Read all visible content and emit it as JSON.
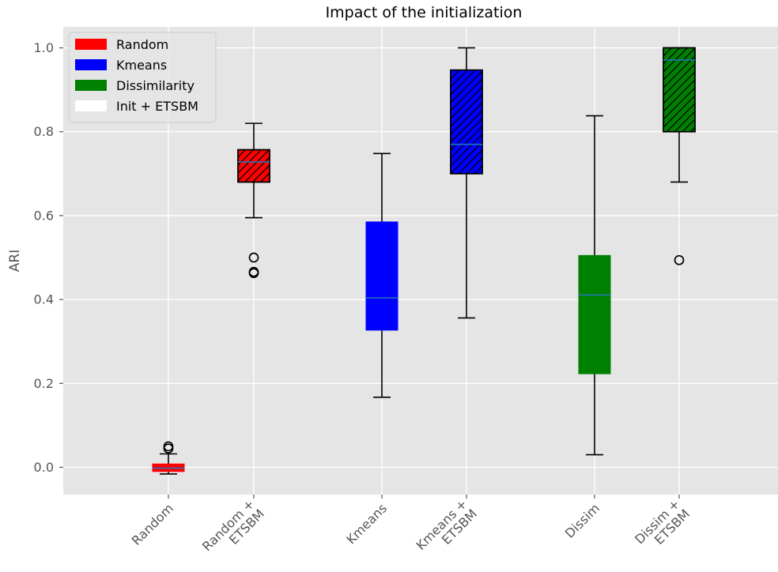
{
  "chart_data": {
    "type": "box",
    "title": "Impact of the initialization",
    "xlabel": "",
    "ylabel": "ARI",
    "ylim": [
      -0.065,
      1.05
    ],
    "yticks": [
      0.0,
      0.2,
      0.4,
      0.6,
      0.8,
      1.0
    ],
    "ytick_labels": [
      "0.0",
      "0.2",
      "0.4",
      "0.6",
      "0.8",
      "1.0"
    ],
    "grid": true,
    "legend_position": "top-left",
    "legend": [
      {
        "label": "Random",
        "color": "#ff0000"
      },
      {
        "label": "Kmeans",
        "color": "#0000ff"
      },
      {
        "label": "Dissimilarity",
        "color": "#008000"
      },
      {
        "label": "Init + ETSBM",
        "color": "#ffffff"
      }
    ],
    "boxes": [
      {
        "category_lines": [
          "Random"
        ],
        "color": "#ff0000",
        "hatched": false,
        "whisker_low": -0.016,
        "q1": -0.01,
        "median": -0.002,
        "q3": 0.008,
        "whisker_high": 0.032,
        "outliers": [
          0.045,
          0.05
        ]
      },
      {
        "category_lines": [
          "Random +",
          "ETSBM"
        ],
        "color": "#ff0000",
        "hatched": true,
        "whisker_low": 0.595,
        "q1": 0.68,
        "median": 0.728,
        "q3": 0.757,
        "whisker_high": 0.82,
        "outliers": [
          0.5,
          0.466,
          0.463
        ]
      },
      {
        "category_lines": [
          "Kmeans"
        ],
        "color": "#0000ff",
        "hatched": false,
        "whisker_low": 0.167,
        "q1": 0.327,
        "median": 0.404,
        "q3": 0.585,
        "whisker_high": 0.748,
        "outliers": []
      },
      {
        "category_lines": [
          "Kmeans +",
          "ETSBM"
        ],
        "color": "#0000ff",
        "hatched": true,
        "whisker_low": 0.356,
        "q1": 0.7,
        "median": 0.77,
        "q3": 0.947,
        "whisker_high": 1.0,
        "outliers": []
      },
      {
        "category_lines": [
          "Dissim"
        ],
        "color": "#008000",
        "hatched": false,
        "whisker_low": 0.03,
        "q1": 0.223,
        "median": 0.411,
        "q3": 0.505,
        "whisker_high": 0.838,
        "outliers": []
      },
      {
        "category_lines": [
          "Dissim +",
          "ETSBM"
        ],
        "color": "#008000",
        "hatched": true,
        "whisker_low": 0.68,
        "q1": 0.8,
        "median": 0.971,
        "q3": 1.0,
        "whisker_high": 1.0,
        "outliers": [
          0.494
        ]
      }
    ],
    "colors": {
      "background": "#e5e5e5",
      "grid": "#ffffff",
      "median": "#1f77b4",
      "text": "#555555"
    }
  }
}
